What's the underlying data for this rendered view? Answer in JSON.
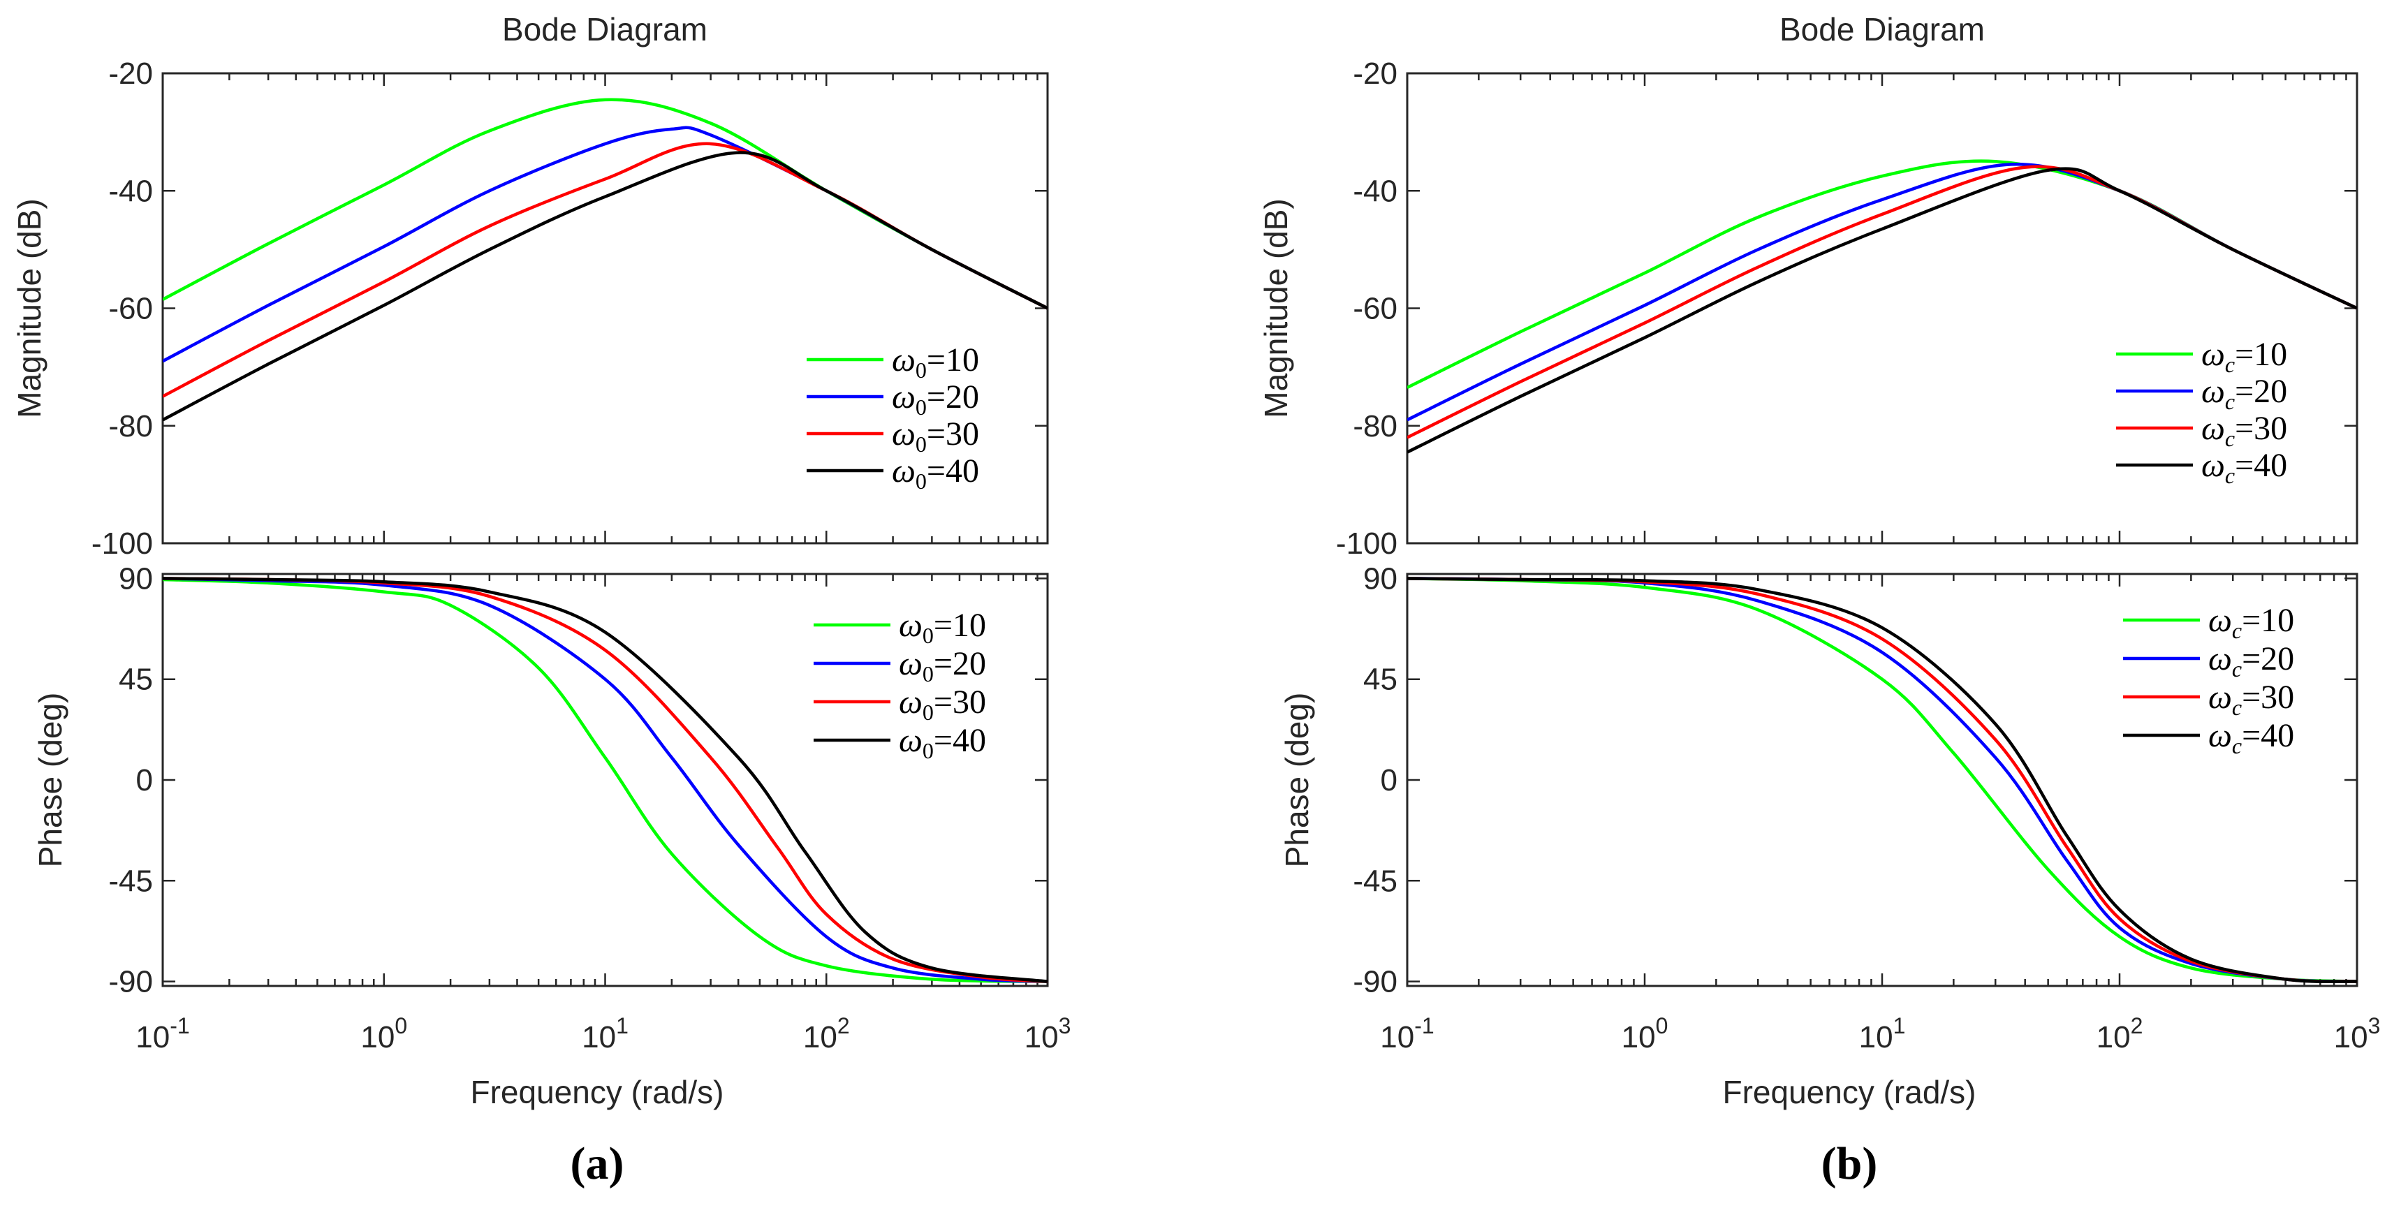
{
  "colors": {
    "g": "#00ff00",
    "b": "#0000ff",
    "r": "#ff0000",
    "k": "#000000",
    "axis": "#262626"
  },
  "chart_data": [
    {
      "type": "line",
      "panel_label": "(a)",
      "title": "Bode Diagram",
      "xlabel": "Frequency  (rad/s)",
      "xscale": "log",
      "xlim": [
        0.1,
        1000
      ],
      "xtick_base": "10",
      "xtick_exponents": [
        "-1",
        "0",
        "1",
        "2",
        "3"
      ],
      "legend_symbol": "ω",
      "legend_subscript": "0",
      "magnitude": {
        "ylabel": "Magnitude (dB)",
        "ylim": [
          -100,
          -20
        ],
        "yticks": [
          "-20",
          "-40",
          "-60",
          "-80",
          "-100"
        ],
        "legend_position": "lower-right",
        "series": [
          {
            "name": "=10",
            "color": "g",
            "x": [
              0.1,
              0.3,
              1,
              3,
              10,
              30,
              100,
              300,
              1000
            ],
            "y": [
              -58.5,
              -49,
              -39,
              -29.8,
              -24.5,
              -28.5,
              -40,
              -50,
              -60
            ]
          },
          {
            "name": "=20",
            "color": "b",
            "x": [
              0.1,
              0.3,
              1,
              3,
              10,
              20,
              30,
              100,
              300,
              1000
            ],
            "y": [
              -69,
              -59.5,
              -49.5,
              -40,
              -32,
              -29.5,
              -30.5,
              -40,
              -50,
              -60
            ]
          },
          {
            "name": "=30",
            "color": "r",
            "x": [
              0.1,
              0.3,
              1,
              3,
              10,
              30,
              100,
              300,
              1000
            ],
            "y": [
              -75,
              -65.5,
              -55.5,
              -46,
              -38,
              -32,
              -40,
              -50,
              -60
            ]
          },
          {
            "name": "=40",
            "color": "k",
            "x": [
              0.1,
              0.3,
              1,
              3,
              10,
              40,
              100,
              300,
              1000
            ],
            "y": [
              -79,
              -69.5,
              -59.5,
              -50,
              -41,
              -33.5,
              -40,
              -50,
              -60
            ]
          }
        ]
      },
      "phase": {
        "ylabel": "Phase (deg)",
        "ylim": [
          -92,
          92
        ],
        "yticks": [
          "90",
          "45",
          "0",
          "-45",
          "-90"
        ],
        "legend_position": "upper-right",
        "series": [
          {
            "name": "=10",
            "color": "g",
            "x": [
              0.1,
              0.3,
              1,
              2,
              5,
              10,
              20,
              50,
              100,
              300,
              1000
            ],
            "y": [
              89.5,
              88,
              84,
              78,
              50,
              10,
              -33,
              -70,
              -83,
              -89,
              -90
            ]
          },
          {
            "name": "=20",
            "color": "b",
            "x": [
              0.1,
              0.3,
              1,
              3,
              10,
              20,
              40,
              100,
              200,
              500,
              1000
            ],
            "y": [
              90,
              89,
              87,
              78,
              45,
              10,
              -29,
              -70,
              -84,
              -89,
              -90
            ]
          },
          {
            "name": "=30",
            "color": "r",
            "x": [
              0.1,
              0.3,
              1,
              3,
              10,
              30,
              60,
              100,
              200,
              500,
              1000
            ],
            "y": [
              90,
              89.5,
              88,
              82,
              58,
              10,
              -30,
              -60,
              -80,
              -88,
              -90
            ]
          },
          {
            "name": "=40",
            "color": "k",
            "x": [
              0.1,
              0.3,
              1,
              3,
              10,
              40,
              80,
              150,
              300,
              1000
            ],
            "y": [
              90,
              89.5,
              88.5,
              84,
              66,
              10,
              -32,
              -68,
              -84,
              -90
            ]
          }
        ]
      }
    },
    {
      "type": "line",
      "panel_label": "(b)",
      "title": "Bode Diagram",
      "xlabel": "Frequency  (rad/s)",
      "xscale": "log",
      "xlim": [
        0.1,
        1000
      ],
      "xtick_base": "10",
      "xtick_exponents": [
        "-1",
        "0",
        "1",
        "2",
        "3"
      ],
      "legend_symbol": "ω",
      "legend_subscript": "c",
      "magnitude": {
        "ylabel": "Magnitude (dB)",
        "ylim": [
          -100,
          -20
        ],
        "yticks": [
          "-20",
          "-40",
          "-60",
          "-80",
          "-100"
        ],
        "legend_position": "lower-right",
        "series": [
          {
            "name": "=10",
            "color": "g",
            "x": [
              0.1,
              0.3,
              1,
              3,
              10,
              30,
              100,
              300,
              1000
            ],
            "y": [
              -73.5,
              -64,
              -54,
              -44.5,
              -37.5,
              -35,
              -40,
              -50,
              -60
            ]
          },
          {
            "name": "=20",
            "color": "b",
            "x": [
              0.1,
              0.3,
              1,
              3,
              10,
              35,
              100,
              300,
              1000
            ],
            "y": [
              -79,
              -69.5,
              -59.5,
              -50,
              -41.5,
              -35.5,
              -40,
              -50,
              -60
            ]
          },
          {
            "name": "=30",
            "color": "r",
            "x": [
              0.1,
              0.3,
              1,
              3,
              10,
              40,
              100,
              300,
              1000
            ],
            "y": [
              -82,
              -72.5,
              -62.5,
              -53,
              -44,
              -36,
              -40,
              -50,
              -60
            ]
          },
          {
            "name": "=40",
            "color": "k",
            "x": [
              0.1,
              0.3,
              1,
              3,
              10,
              50,
              100,
              300,
              1000
            ],
            "y": [
              -84.5,
              -75,
              -65,
              -55.5,
              -46.5,
              -36.5,
              -40,
              -50,
              -60
            ]
          }
        ]
      },
      "phase": {
        "ylabel": "Phase (deg)",
        "ylim": [
          -92,
          92
        ],
        "yticks": [
          "90",
          "45",
          "0",
          "-45",
          "-90"
        ],
        "legend_position": "upper-right",
        "series": [
          {
            "name": "=10",
            "color": "g",
            "x": [
              0.1,
              0.3,
              1,
              3,
              10,
              20,
              50,
              100,
              200,
              500,
              1000
            ],
            "y": [
              90,
              89,
              86,
              76,
              45,
              12,
              -40,
              -70,
              -84,
              -89,
              -90
            ]
          },
          {
            "name": "=20",
            "color": "b",
            "x": [
              0.1,
              0.3,
              1,
              3,
              10,
              30,
              60,
              100,
              200,
              500,
              1000
            ],
            "y": [
              90,
              89.5,
              88,
              80,
              57,
              10,
              -36,
              -66,
              -82,
              -89,
              -90
            ]
          },
          {
            "name": "=30",
            "color": "r",
            "x": [
              0.1,
              0.3,
              1,
              3,
              10,
              30,
              60,
              100,
              200,
              500,
              1000
            ],
            "y": [
              90,
              89.5,
              88.5,
              83,
              63,
              18,
              -30,
              -62,
              -81,
              -89,
              -90
            ]
          },
          {
            "name": "=40",
            "color": "k",
            "x": [
              0.1,
              0.3,
              1,
              3,
              10,
              30,
              60,
              100,
              200,
              500,
              1000
            ],
            "y": [
              90,
              89.5,
              89,
              85,
              68,
              25,
              -25,
              -58,
              -80,
              -89,
              -90
            ]
          }
        ]
      }
    }
  ]
}
